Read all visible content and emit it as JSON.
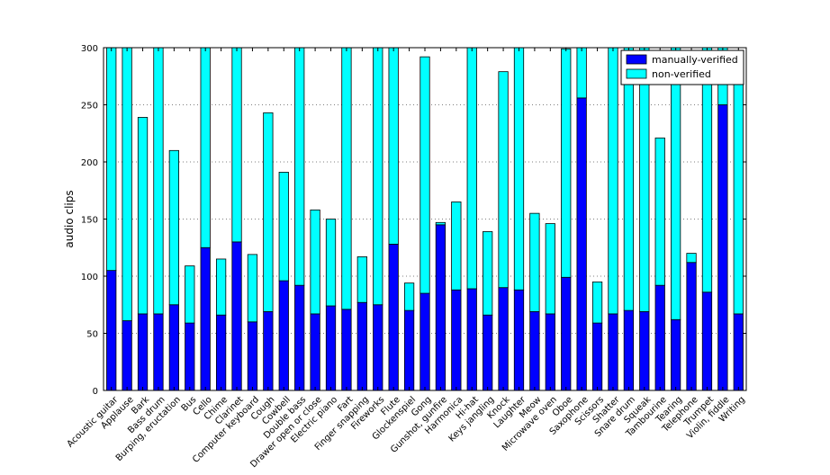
{
  "chart_data": {
    "type": "bar",
    "stacked": true,
    "ylabel": "audio clips",
    "xlabel": "",
    "ylim": [
      0,
      300
    ],
    "yticks": [
      0,
      50,
      100,
      150,
      200,
      250,
      300
    ],
    "grid": "y-dotted",
    "legend_position": "top-right",
    "categories": [
      "Acoustic guitar",
      "Applause",
      "Bark",
      "Bass drum",
      "Burping, eructation",
      "Bus",
      "Cello",
      "Chime",
      "Clarinet",
      "Computer keyboard",
      "Cough",
      "Cowbell",
      "Double bass",
      "Drawer open or close",
      "Electric piano",
      "Fart",
      "Finger snapping",
      "Fireworks",
      "Flute",
      "Glockenspiel",
      "Gong",
      "Gunshot, gunfire",
      "Harmonica",
      "Hi-hat",
      "Keys jangling",
      "Knock",
      "Laughter",
      "Meow",
      "Microwave oven",
      "Oboe",
      "Saxophone",
      "Scissors",
      "Shatter",
      "Snare drum",
      "Squeak",
      "Tambourine",
      "Tearing",
      "Telephone",
      "Trumpet",
      "Violin, fiddle",
      "Writing"
    ],
    "series": [
      {
        "name": "manually-verified",
        "color": "#0000ff",
        "values": [
          105,
          61,
          67,
          67,
          75,
          59,
          125,
          66,
          130,
          60,
          69,
          96,
          92,
          67,
          74,
          71,
          77,
          75,
          128,
          70,
          85,
          145,
          88,
          89,
          66,
          90,
          88,
          69,
          67,
          99,
          256,
          59,
          67,
          70,
          69,
          92,
          62,
          112,
          86,
          250,
          67
        ]
      },
      {
        "name": "non-verified",
        "color": "#00ffff",
        "values": [
          195,
          239,
          172,
          233,
          135,
          50,
          175,
          49,
          170,
          59,
          174,
          95,
          208,
          91,
          76,
          229,
          40,
          225,
          172,
          24,
          207,
          2,
          77,
          211,
          73,
          189,
          212,
          86,
          79,
          200,
          44,
          36,
          233,
          230,
          231,
          129,
          238,
          8,
          214,
          50,
          203
        ]
      }
    ]
  }
}
